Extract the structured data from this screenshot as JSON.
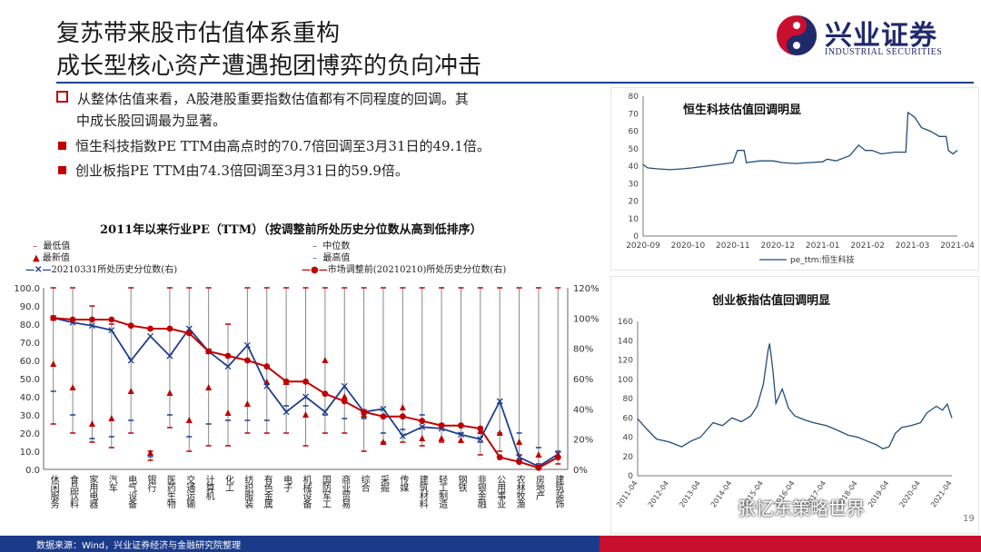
{
  "slide": {
    "title_line1": "复苏带来股市估值体系重构",
    "title_line2": "成长型核心资产遭遇抱团博弈的负向冲击",
    "logo_name": "兴业证券",
    "logo_en": "INDUSTRIAL SECURITIES",
    "bullets": [
      {
        "text": "从整体估值来看，A股港股重要指数估值都有不同程度的回调。其",
        "style": "open"
      },
      {
        "text": "中成长股回调最为显著。",
        "style": "cont"
      },
      {
        "text": "恒生科技指数PE TTM由高点时的70.7倍回调至3月31日的49.1倍。",
        "style": "fill"
      },
      {
        "text": "创业板指PE TTM由74.3倍回调至3月31日的59.9倍。",
        "style": "fill"
      }
    ],
    "footer": "数据来源：Wind，兴业证券经济与金融研究院整理",
    "page_number": "19",
    "watermark": "张忆东策略世界",
    "colors": {
      "navy": "#1f3f8f",
      "red": "#c00000",
      "chart_line": "#1f4e79"
    }
  },
  "chart_data": [
    {
      "type": "line",
      "title": "2011年以来行业PE（TTM）（按调整前所处历史分位数从高到低排序）",
      "legend": [
        "最低值",
        "中位数",
        "最新值",
        "最高值",
        "20210331所处历史分位数(右)",
        "市场调整前(20210210)所处历史分位数(右)"
      ],
      "categories": [
        "休闲服务",
        "食品饮料",
        "家用电器",
        "汽车",
        "电气设备",
        "银行",
        "医药生物",
        "交通运输",
        "计算机",
        "化工",
        "纺织服装",
        "有色金属",
        "电子",
        "机械设备",
        "国防军工",
        "商业贸易",
        "综合",
        "采掘",
        "传媒",
        "建筑材料",
        "轻工制造",
        "钢铁",
        "非银金融",
        "公用事业",
        "农林牧渔",
        "房地产",
        "建筑装饰"
      ],
      "y_left": {
        "min": 0,
        "max": 100,
        "ticks": [
          "0.0",
          "10.0",
          "20.0",
          "30.0",
          "40.0",
          "50.0",
          "60.0",
          "70.0",
          "80.0",
          "90.0",
          "100.0"
        ]
      },
      "y_right": {
        "min": 0,
        "max": 120,
        "ticks": [
          "0%",
          "20%",
          "40%",
          "60%",
          "80%",
          "100%",
          "120%"
        ]
      },
      "low": [
        25,
        20,
        15,
        12,
        20,
        5,
        23,
        10,
        13,
        13,
        20,
        20,
        20,
        13,
        20,
        20,
        10,
        15,
        15,
        13,
        15,
        15,
        8,
        10,
        8,
        3,
        3
      ],
      "median": [
        43,
        30,
        17,
        18,
        27,
        7,
        30,
        18,
        25,
        27,
        27,
        27,
        35,
        35,
        30,
        28,
        28,
        20,
        22,
        30,
        25,
        20,
        15,
        20,
        20,
        12,
        10
      ],
      "latest": [
        58,
        45,
        25,
        28,
        43,
        9,
        42,
        27,
        45,
        31,
        36,
        48,
        48,
        30,
        60,
        40,
        30,
        15,
        34,
        17,
        17,
        16,
        21,
        20,
        15,
        8,
        8
      ],
      "high": [
        100,
        100,
        90,
        80,
        100,
        10,
        100,
        100,
        100,
        80,
        100,
        100,
        100,
        100,
        100,
        100,
        100,
        100,
        100,
        100,
        100,
        100,
        100,
        100,
        100,
        100,
        100
      ],
      "pct_20210331": [
        100,
        97,
        95,
        92,
        72,
        88,
        75,
        93,
        78,
        68,
        82,
        55,
        38,
        48,
        38,
        55,
        38,
        40,
        22,
        28,
        27,
        23,
        20,
        45,
        8,
        2,
        10
      ],
      "pct_20210210": [
        100,
        99,
        99,
        99,
        95,
        93,
        93,
        90,
        78,
        75,
        72,
        68,
        58,
        58,
        50,
        45,
        38,
        35,
        35,
        32,
        29,
        29,
        27,
        8,
        5,
        1,
        8
      ]
    },
    {
      "type": "line",
      "title": "恒生科技估值回调明显",
      "series_name": "pe_ttm:恒生科技",
      "x_ticks": [
        "2020-09",
        "2020-10",
        "2020-11",
        "2020-12",
        "2021-01",
        "2021-02",
        "2021-03",
        "2021-04"
      ],
      "ylim": [
        0,
        80
      ],
      "y_ticks": [
        0,
        10,
        20,
        30,
        40,
        50,
        60,
        70,
        80
      ],
      "points": [
        [
          0,
          41
        ],
        [
          0.1,
          39
        ],
        [
          0.3,
          38.5
        ],
        [
          0.6,
          38
        ],
        [
          0.9,
          38.5
        ],
        [
          1.1,
          39
        ],
        [
          1.4,
          40
        ],
        [
          1.7,
          41
        ],
        [
          2.0,
          42
        ],
        [
          2.1,
          49
        ],
        [
          2.25,
          49
        ],
        [
          2.3,
          42
        ],
        [
          2.6,
          43
        ],
        [
          2.9,
          43
        ],
        [
          3.1,
          42
        ],
        [
          3.4,
          41.5
        ],
        [
          3.7,
          42
        ],
        [
          4.0,
          42.5
        ],
        [
          4.1,
          44
        ],
        [
          4.3,
          43
        ],
        [
          4.6,
          46
        ],
        [
          4.8,
          52
        ],
        [
          4.95,
          49
        ],
        [
          5.1,
          49
        ],
        [
          5.3,
          47
        ],
        [
          5.6,
          48
        ],
        [
          5.85,
          48
        ],
        [
          5.9,
          70.7
        ],
        [
          6.05,
          68
        ],
        [
          6.2,
          62
        ],
        [
          6.4,
          60
        ],
        [
          6.6,
          57
        ],
        [
          6.75,
          57
        ],
        [
          6.8,
          49
        ],
        [
          6.9,
          47
        ],
        [
          7.0,
          49.1
        ]
      ]
    },
    {
      "type": "line",
      "title": "创业板指估值回调明显",
      "x_ticks": [
        "2011-04",
        "2012-04",
        "2013-04",
        "2014-04",
        "2015-04",
        "2016-04",
        "2017-04",
        "2018-04",
        "2019-04",
        "2020-04",
        "2021-04"
      ],
      "ylim": [
        0,
        160
      ],
      "y_ticks": [
        0,
        20,
        40,
        60,
        80,
        100,
        120,
        140,
        160
      ],
      "points": [
        [
          0,
          59
        ],
        [
          0.3,
          48
        ],
        [
          0.6,
          38
        ],
        [
          1.0,
          35
        ],
        [
          1.4,
          30
        ],
        [
          1.7,
          36
        ],
        [
          2.0,
          40
        ],
        [
          2.4,
          55
        ],
        [
          2.7,
          52
        ],
        [
          3.0,
          60
        ],
        [
          3.3,
          56
        ],
        [
          3.6,
          62
        ],
        [
          3.8,
          72
        ],
        [
          4.0,
          95
        ],
        [
          4.15,
          130
        ],
        [
          4.2,
          137
        ],
        [
          4.3,
          110
        ],
        [
          4.4,
          75
        ],
        [
          4.6,
          90
        ],
        [
          4.8,
          70
        ],
        [
          5.0,
          62
        ],
        [
          5.3,
          58
        ],
        [
          5.6,
          55
        ],
        [
          6.0,
          52
        ],
        [
          6.3,
          48
        ],
        [
          6.7,
          42
        ],
        [
          7.0,
          40
        ],
        [
          7.3,
          36
        ],
        [
          7.6,
          32
        ],
        [
          7.8,
          28
        ],
        [
          8.0,
          30
        ],
        [
          8.2,
          44
        ],
        [
          8.4,
          50
        ],
        [
          8.7,
          52
        ],
        [
          9.0,
          55
        ],
        [
          9.2,
          65
        ],
        [
          9.5,
          72
        ],
        [
          9.7,
          68
        ],
        [
          9.85,
          74.3
        ],
        [
          10.0,
          59.9
        ]
      ]
    }
  ]
}
